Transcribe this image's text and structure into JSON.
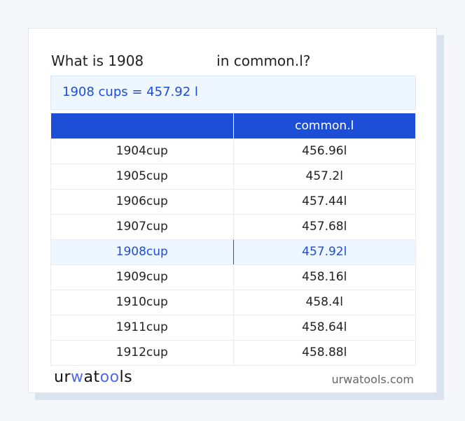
{
  "title": {
    "prefix": "What is 1908",
    "suffix": "in common.l?"
  },
  "result": "1908 cups = 457.92 l",
  "table": {
    "headers": [
      "",
      "common.l"
    ],
    "rows": [
      [
        "1904cup",
        "456.96l"
      ],
      [
        "1905cup",
        "457.2l"
      ],
      [
        "1906cup",
        "457.44l"
      ],
      [
        "1907cup",
        "457.68l"
      ],
      [
        "1908cup",
        "457.92l"
      ],
      [
        "1909cup",
        "458.16l"
      ],
      [
        "1910cup",
        "458.4l"
      ],
      [
        "1911cup",
        "458.64l"
      ],
      [
        "1912cup",
        "458.88l"
      ]
    ],
    "highlighted_row": 4
  },
  "footer": {
    "logo": "urwatools",
    "site": "urwatools.com"
  },
  "colors": {
    "accent": "#1d4ed8",
    "highlight_bg": "#eef6ff"
  }
}
